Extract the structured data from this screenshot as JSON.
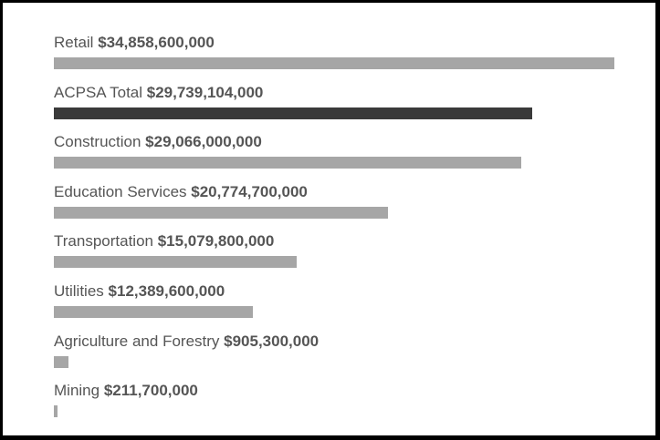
{
  "chart_data": {
    "type": "bar",
    "orientation": "horizontal",
    "categories": [
      "Retail",
      "ACPSA Total",
      "Construction",
      "Education Services",
      "Transportation",
      "Utilities",
      "Agriculture and Forestry",
      "Mining"
    ],
    "values": [
      34858600000,
      29739104000,
      29066000000,
      20774700000,
      15079800000,
      12389600000,
      905300000,
      211700000
    ],
    "value_labels": [
      "$34,858,600,000",
      "$29,739,104,000",
      "$29,066,000,000",
      "$20,774,700,000",
      "$15,079,800,000",
      "$12,389,600,000",
      "$905,300,000",
      "$211,700,000"
    ],
    "highlight_index": 1,
    "xlim": [
      0,
      34858600000
    ],
    "grid": false,
    "legend": "none",
    "colors": {
      "bar": "#a6a6a6",
      "highlight": "#3a3a3a",
      "text": "#555555"
    }
  }
}
